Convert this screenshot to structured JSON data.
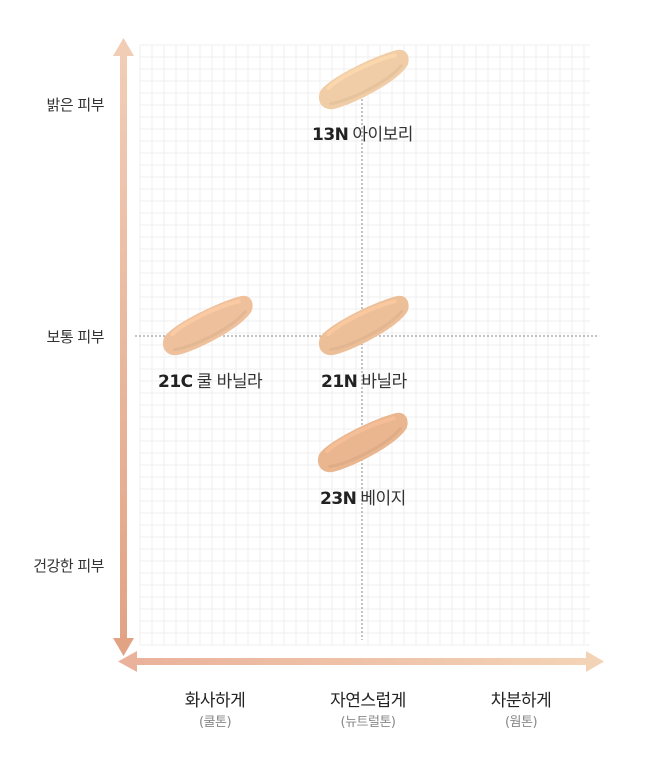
{
  "y_axis": {
    "levels": [
      "밝은 피부",
      "보통 피부",
      "건강한 피부"
    ]
  },
  "x_axis": {
    "categories": [
      {
        "label": "화사하게",
        "sub": "(쿨톤)"
      },
      {
        "label": "자연스럽게",
        "sub": "(뉴트럴톤)"
      },
      {
        "label": "차분하게",
        "sub": "(웜톤)"
      }
    ]
  },
  "shades": [
    {
      "code": "13N",
      "name": "아이보리",
      "color": "#f0cda6"
    },
    {
      "code": "21C",
      "name": "쿨 바닐라",
      "color": "#eec09c"
    },
    {
      "code": "21N",
      "name": "바닐라",
      "color": "#edbf98"
    },
    {
      "code": "23N",
      "name": "베이지",
      "color": "#e9b68f"
    }
  ],
  "colors": {
    "y_axis_top": "#f1cdb6",
    "y_axis_bottom": "#e2a385",
    "x_axis_left": "#eab29b",
    "x_axis_right": "#f3d3b6",
    "guide_line": "#888888",
    "grid": "#efefef"
  }
}
